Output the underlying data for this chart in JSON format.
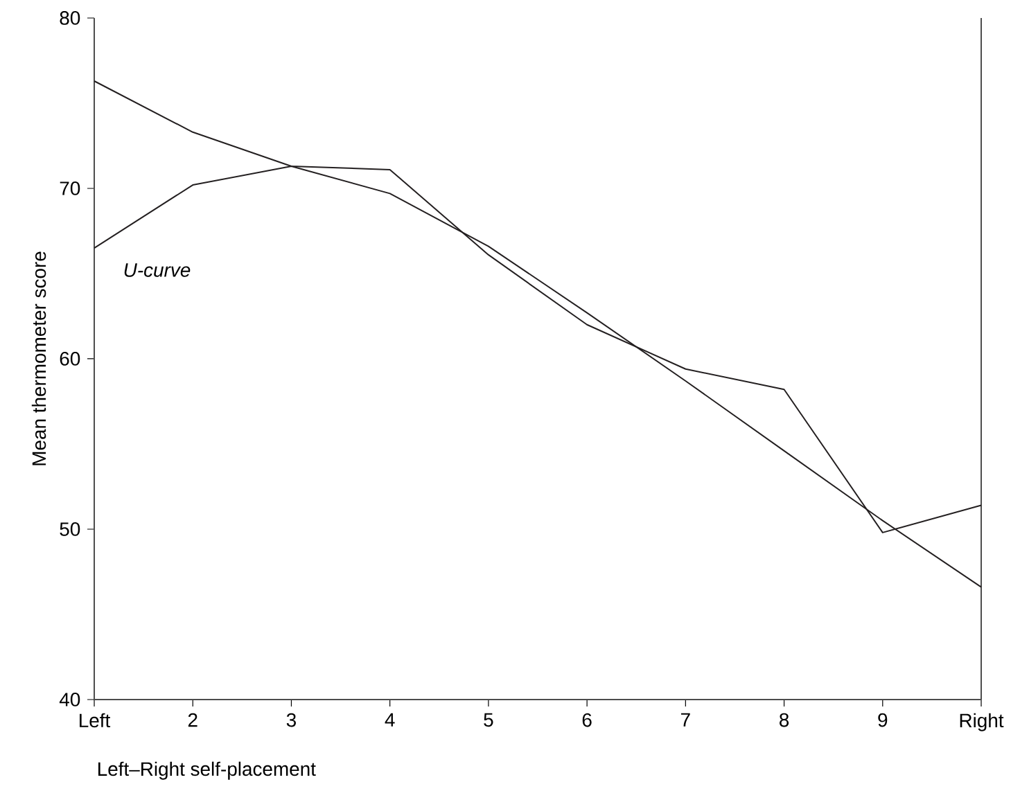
{
  "chart_data": {
    "type": "line",
    "xlabel": "Left–Right self-placement",
    "ylabel": "Mean thermometer score",
    "categories": [
      "Left",
      "2",
      "3",
      "4",
      "5",
      "6",
      "7",
      "8",
      "9",
      "Right"
    ],
    "series": [
      {
        "color": "#231f20",
        "values": [
          76.3,
          73.3,
          71.3,
          71.1,
          66.1,
          62.0,
          59.4,
          58.2,
          49.8,
          51.4
        ]
      },
      {
        "color": "#231f20",
        "values": [
          66.5,
          70.2,
          71.3,
          69.7,
          66.6,
          62.7,
          58.7,
          54.6,
          50.5,
          46.6
        ]
      }
    ],
    "annotations": [
      "U-curve"
    ],
    "ylim": [
      40,
      80
    ],
    "yticks": [
      40,
      50,
      60,
      70,
      80
    ],
    "grid": false,
    "marker": "none",
    "line_style": "solid"
  }
}
